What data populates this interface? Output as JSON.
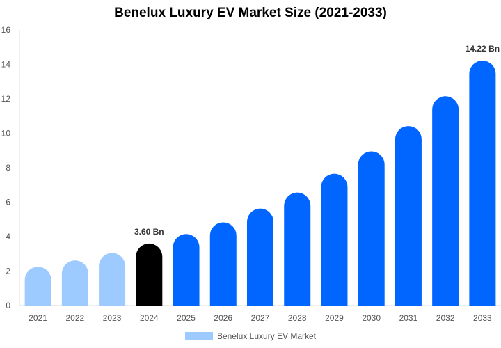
{
  "chart_data": {
    "type": "bar",
    "title": "Benelux Luxury EV Market Size (2021-2033)",
    "categories": [
      "2021",
      "2022",
      "2023",
      "2024",
      "2025",
      "2026",
      "2027",
      "2028",
      "2029",
      "2030",
      "2031",
      "2032",
      "2033"
    ],
    "series": [
      {
        "name": "Benelux Luxury EV Market",
        "values": [
          2.25,
          2.62,
          3.05,
          3.6,
          4.15,
          4.83,
          5.63,
          6.56,
          7.65,
          8.95,
          10.42,
          12.15,
          14.22
        ]
      }
    ],
    "data_labels": {
      "3": "3.60 Bn",
      "12": "14.22 Bn"
    },
    "ylim": [
      0,
      16
    ],
    "yticks": [
      0,
      2,
      4,
      6,
      8,
      10,
      12,
      14,
      16
    ],
    "xlabel": "",
    "ylabel": "",
    "grid": false,
    "legend": "bottom",
    "colors": {
      "historical": "#9ecbff",
      "base_year": "#000000",
      "forecast": "#0066ff",
      "legend": "#9ecbff"
    }
  }
}
